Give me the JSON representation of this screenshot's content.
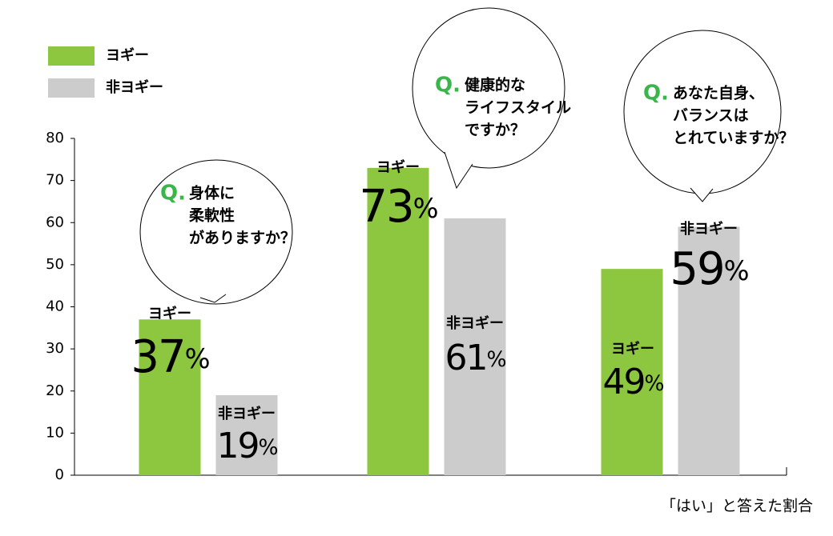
{
  "chart_data": {
    "type": "bar",
    "categories": [
      null,
      null,
      null
    ],
    "series": [
      {
        "name": "ヨギー",
        "color": "#8dc63f",
        "values": [
          37,
          73,
          49
        ],
        "value_labels": [
          "37%",
          "73%",
          "49%"
        ]
      },
      {
        "name": "非ヨギー",
        "color": "#cccccc",
        "values": [
          19,
          61,
          59
        ],
        "value_labels": [
          "19%",
          "61%",
          "59%"
        ]
      }
    ],
    "annotations": [
      {
        "marker": "Q.",
        "lines": [
          "身体に",
          "柔軟性",
          "がありますか？"
        ]
      },
      {
        "marker": "Q.",
        "lines": [
          "健康的な",
          "ライフスタイル",
          "ですか？"
        ]
      },
      {
        "marker": "Q.",
        "lines": [
          "あなた自身、",
          "バランスは",
          "とれていますか？"
        ]
      }
    ],
    "axis_label": "「はい」と答えた割合",
    "ylim": [
      0,
      80
    ],
    "yticks": [
      0,
      10,
      20,
      30,
      40,
      50,
      60,
      70,
      80
    ],
    "legend": "top-left"
  }
}
